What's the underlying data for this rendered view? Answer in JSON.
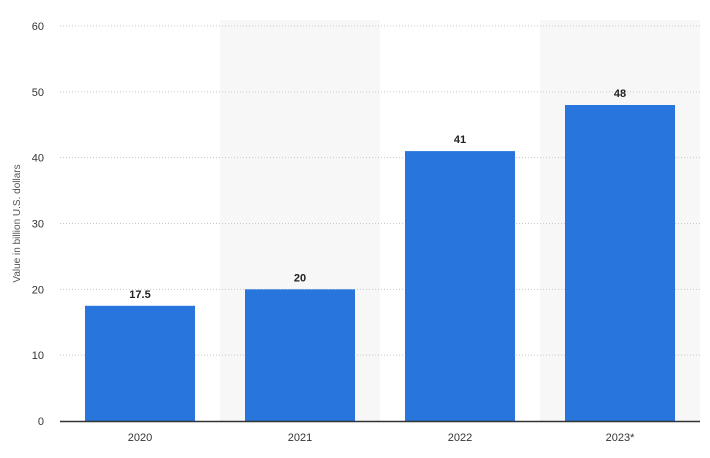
{
  "chart_data": {
    "type": "bar",
    "categories": [
      "2020",
      "2021",
      "2022",
      "2023*"
    ],
    "values": [
      17.5,
      20,
      41,
      48
    ],
    "data_labels": [
      "17.5",
      "20",
      "41",
      "48"
    ],
    "ylabel": "Value in billion U.S. dollars",
    "ylim": [
      0,
      60
    ],
    "yticks": [
      0,
      10,
      20,
      30,
      40,
      50,
      60
    ],
    "grid": true,
    "bar_color": "#2876DD",
    "alternate_band_color": "#F7F7F7",
    "grid_color": "#C8C8C8",
    "axis_color": "#333333"
  }
}
